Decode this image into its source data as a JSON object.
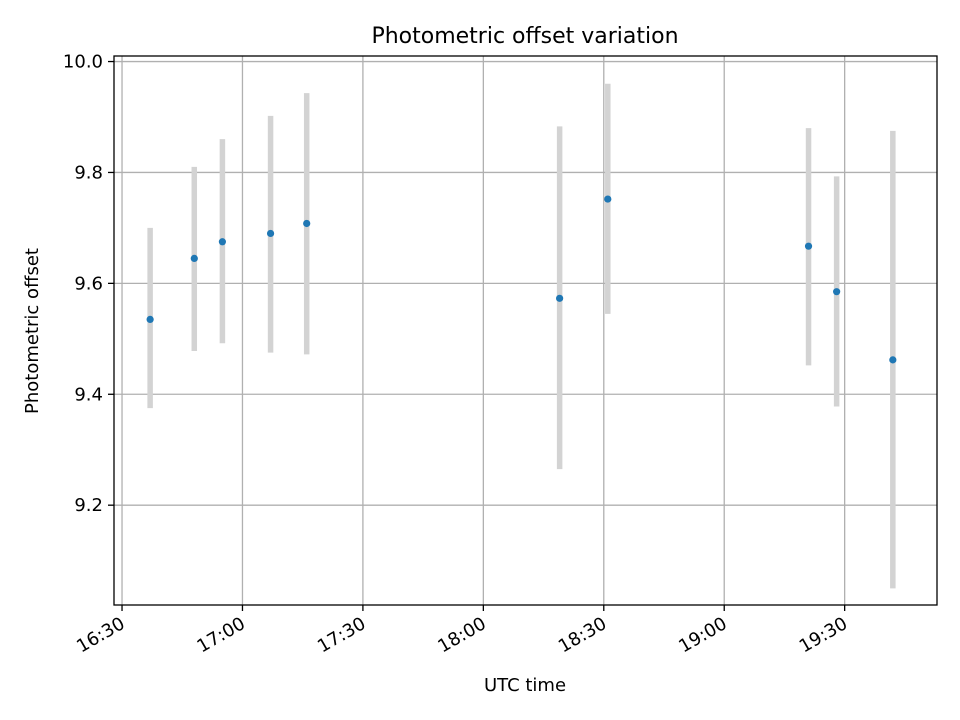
{
  "chart_data": {
    "type": "scatter",
    "title": "Photometric offset variation",
    "xlabel": "UTC time",
    "ylabel": "Photometric offset",
    "x_ticks": [
      "16:30",
      "17:00",
      "17:30",
      "18:00",
      "18:30",
      "19:00",
      "19:30"
    ],
    "x_tick_values": [
      990,
      1020,
      1050,
      1080,
      1110,
      1140,
      1170
    ],
    "y_ticks": [
      "9.2",
      "9.4",
      "9.6",
      "9.8",
      "10.0"
    ],
    "y_tick_values": [
      9.2,
      9.4,
      9.6,
      9.8,
      10.0
    ],
    "xlim": [
      "16:28",
      "19:53"
    ],
    "ylim": [
      9.02,
      10.01
    ],
    "grid": true,
    "point_color": "#1f77b4",
    "errorbar_color": "#d3d3d3",
    "series": [
      {
        "x": [
          "16:37",
          "16:48",
          "16:55",
          "17:07",
          "17:16",
          "18:19",
          "18:31",
          "19:21",
          "19:28",
          "19:42"
        ],
        "y": [
          9.535,
          9.645,
          9.675,
          9.69,
          9.708,
          9.573,
          9.752,
          9.667,
          9.585,
          9.462
        ],
        "yerr_low": [
          9.375,
          9.478,
          9.492,
          9.475,
          9.472,
          9.265,
          9.545,
          9.452,
          9.378,
          9.05
        ],
        "yerr_high": [
          9.7,
          9.81,
          9.86,
          9.902,
          9.943,
          9.883,
          9.96,
          9.88,
          9.793,
          9.875
        ]
      }
    ]
  }
}
